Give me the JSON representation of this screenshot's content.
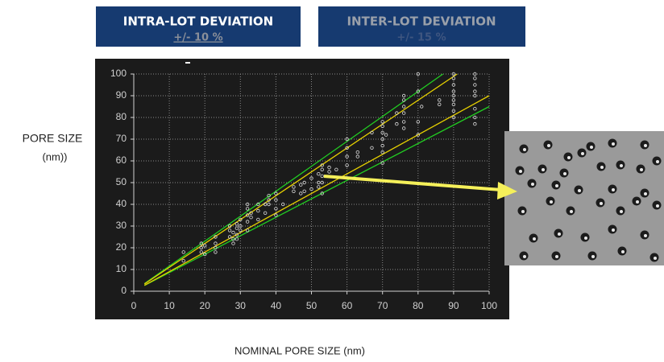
{
  "header": {
    "intra": {
      "title": "INTRA-LOT DEVIATION",
      "range": "+/- 10 %"
    },
    "inter": {
      "title": "INTER-LOT DEVIATION",
      "range": "+/- 15 %"
    }
  },
  "chart_data": {
    "type": "scatter",
    "ylabel": [
      "PORE SIZE",
      "(nm))"
    ],
    "xlabel": "NOMINAL PORE SIZE (nm)",
    "xlim": [
      0,
      100
    ],
    "ylim": [
      0,
      100
    ],
    "xticks": [
      0,
      10,
      20,
      30,
      40,
      50,
      60,
      70,
      80,
      90,
      100
    ],
    "yticks": [
      0,
      10,
      20,
      30,
      40,
      50,
      60,
      70,
      80,
      90,
      100
    ],
    "grid": true,
    "series": [
      {
        "type": "line",
        "color": "#22cc22",
        "x": [
          3,
          87
        ],
        "values": [
          3.5,
          100
        ]
      },
      {
        "type": "line",
        "color": "#22cc22",
        "x": [
          3,
          100
        ],
        "values": [
          2.6,
          85
        ]
      },
      {
        "type": "line",
        "color": "#e6d000",
        "x": [
          3,
          91
        ],
        "values": [
          3.3,
          100
        ]
      },
      {
        "type": "line",
        "color": "#e6d000",
        "x": [
          3,
          100
        ],
        "values": [
          2.7,
          90
        ]
      },
      {
        "type": "scatter",
        "color": "#dddddd",
        "x": [
          14,
          14,
          19,
          19,
          19,
          20,
          20,
          23,
          23,
          23,
          23,
          27,
          27,
          27,
          28,
          28,
          28,
          29,
          29,
          29,
          29,
          30,
          30,
          30,
          32,
          32,
          32,
          32,
          32,
          33,
          33,
          35,
          35,
          35,
          37,
          37,
          38,
          38,
          38,
          40,
          40,
          40,
          40,
          42,
          45,
          45,
          47,
          47,
          48,
          48,
          50,
          50,
          52,
          52,
          52,
          53,
          53,
          53,
          53,
          53,
          55,
          55,
          57,
          60,
          60,
          60,
          60,
          63,
          63,
          67,
          67,
          70,
          70,
          70,
          70,
          70,
          70,
          70,
          71,
          74,
          74,
          76,
          76,
          76,
          76,
          76,
          76,
          80,
          80,
          80,
          80,
          81,
          86,
          86,
          90,
          90,
          90,
          90,
          90,
          90,
          90,
          90,
          90,
          96,
          96,
          96,
          96,
          96,
          96,
          96,
          96
        ],
        "values": [
          18,
          14,
          20,
          18,
          22,
          17,
          21,
          18,
          20,
          22,
          25,
          25,
          28,
          30,
          22,
          24,
          27,
          26,
          29,
          31,
          24,
          28,
          30,
          33,
          28,
          32,
          35,
          38,
          40,
          34,
          36,
          33,
          37,
          40,
          36,
          40,
          40,
          42,
          44,
          35,
          38,
          42,
          45,
          40,
          46,
          48,
          45,
          49,
          46,
          50,
          47,
          52,
          48,
          50,
          54,
          45,
          50,
          53,
          56,
          58,
          55,
          57,
          56,
          58,
          62,
          66,
          70,
          62,
          64,
          66,
          73,
          59,
          64,
          67,
          70,
          73,
          76,
          78,
          72,
          77,
          82,
          75,
          78,
          82,
          85,
          88,
          90,
          72,
          78,
          92,
          100,
          85,
          86,
          88,
          80,
          83,
          86,
          88,
          90,
          92,
          95,
          98,
          100,
          77,
          80,
          84,
          90,
          92,
          95,
          98,
          100
        ]
      }
    ]
  }
}
